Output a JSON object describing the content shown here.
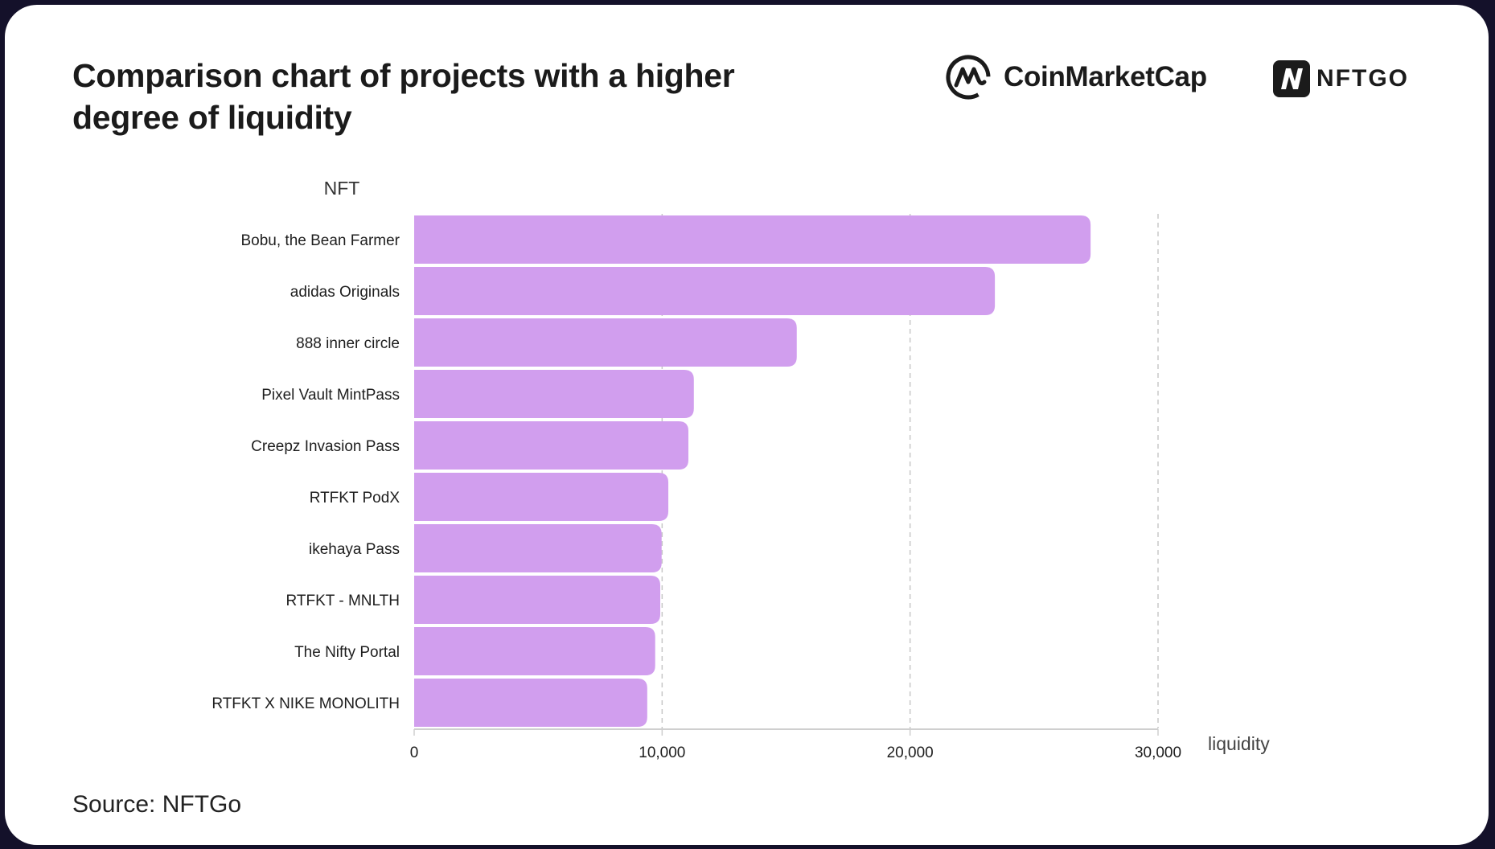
{
  "header": {
    "title": "Comparison chart of projects with a higher degree of liquidity",
    "logos": [
      {
        "name": "CoinMarketCap",
        "icon": "coinmarketcap-logo-icon"
      },
      {
        "name": "NFTGO",
        "icon": "nftgo-logo-icon"
      }
    ]
  },
  "footer": {
    "source": "Source: NFTGo"
  },
  "colors": {
    "bar": "#d19eee",
    "background": "#14112a",
    "grid": "#c8c8c8"
  },
  "chart_data": {
    "type": "bar",
    "orientation": "horizontal",
    "title": "Comparison chart of projects with a higher degree of liquidity",
    "ylabel": "NFT",
    "xlabel": "liquidity",
    "categories": [
      "Bobu, the Bean Farmer",
      "adidas Originals",
      "888 inner circle",
      "Pixel Vault MintPass",
      "Creepz Invasion Pass",
      "RTFKT PodX",
      "ikehaya Pass",
      "RTFKT - MNLTH",
      "The Nifty Portal",
      "RTFKT X NIKE MONOLITH"
    ],
    "values": [
      27280,
      23420,
      15430,
      11280,
      11060,
      10250,
      9980,
      9925,
      9720,
      9400
    ],
    "xlim": [
      0,
      30000
    ],
    "xticks": [
      0,
      10000,
      20000,
      30000
    ],
    "xtick_labels": [
      "0",
      "10,000",
      "20,000",
      "30,000"
    ],
    "grid": "vertical dashed",
    "legend": "none",
    "source": "Source: NFTGo"
  }
}
